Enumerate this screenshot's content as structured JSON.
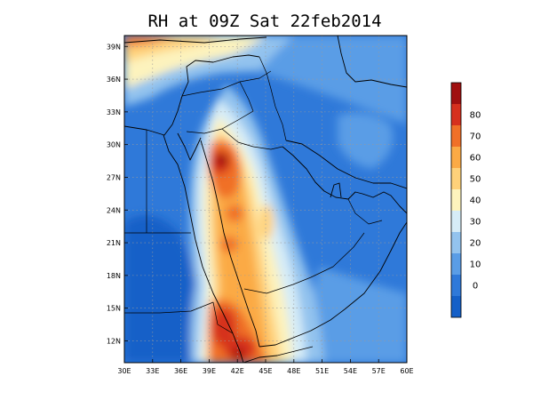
{
  "map": {
    "title": "RH at 09Z Sat 22feb2014",
    "field": "RH",
    "extent": {
      "lon": [
        30,
        60
      ],
      "lat": [
        10,
        40
      ]
    },
    "lon_ticks": [
      {
        "value": 30,
        "label": "30E"
      },
      {
        "value": 33,
        "label": "33E"
      },
      {
        "value": 36,
        "label": "36E"
      },
      {
        "value": 39,
        "label": "39E"
      },
      {
        "value": 42,
        "label": "42E"
      },
      {
        "value": 45,
        "label": "45E"
      },
      {
        "value": 48,
        "label": "48E"
      },
      {
        "value": 51,
        "label": "51E"
      },
      {
        "value": 54,
        "label": "54E"
      },
      {
        "value": 57,
        "label": "57E"
      },
      {
        "value": 60,
        "label": "60E"
      }
    ],
    "lat_ticks": [
      {
        "value": 12,
        "label": "12N"
      },
      {
        "value": 15,
        "label": "15N"
      },
      {
        "value": 18,
        "label": "18N"
      },
      {
        "value": 21,
        "label": "21N"
      },
      {
        "value": 24,
        "label": "24N"
      },
      {
        "value": 27,
        "label": "27N"
      },
      {
        "value": 30,
        "label": "30N"
      },
      {
        "value": 33,
        "label": "33N"
      },
      {
        "value": 36,
        "label": "36N"
      },
      {
        "value": 39,
        "label": "39N"
      }
    ],
    "colorbar": {
      "levels": [
        {
          "label": "",
          "color": "#1560c8"
        },
        {
          "label": "0",
          "color": "#2f79d9"
        },
        {
          "label": "10",
          "color": "#5a9de6"
        },
        {
          "label": "20",
          "color": "#93c3ee"
        },
        {
          "label": "30",
          "color": "#d6ecf7"
        },
        {
          "label": "40",
          "color": "#fdf3bd"
        },
        {
          "label": "50",
          "color": "#fed17a"
        },
        {
          "label": "60",
          "color": "#fbaa45"
        },
        {
          "label": "70",
          "color": "#f07028"
        },
        {
          "label": "80",
          "color": "#d6301e"
        },
        {
          "label": "",
          "color": "#a01010"
        }
      ]
    }
  }
}
